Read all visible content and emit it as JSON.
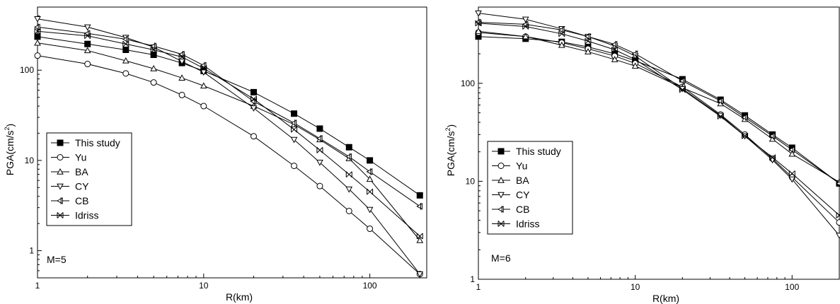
{
  "chart_data": [
    {
      "type": "line",
      "xscale": "log",
      "yscale": "log",
      "xlim": [
        1,
        220
      ],
      "ylim": [
        0.5,
        500
      ],
      "xticks": [
        1,
        10,
        100
      ],
      "xtick_labels": [
        "1",
        "10",
        "100"
      ],
      "yticks": [
        1,
        10,
        100
      ],
      "ytick_labels": [
        "1",
        "10",
        "100"
      ],
      "xlabel": "R(km)",
      "ylabel": "PGA(cm/s",
      "ylabel_sup": "2",
      "ylabel_end": ")",
      "annotation": "M=5",
      "legend_position": "lower-left",
      "x": [
        1,
        2,
        3.4,
        5,
        7.4,
        10,
        20,
        35,
        50,
        75,
        100,
        200
      ],
      "series": [
        {
          "name": "This study",
          "marker": "filled-square",
          "values": [
            235,
            195,
            168,
            148,
            120,
            98,
            57,
            33,
            22.5,
            14,
            10,
            4.1
          ]
        },
        {
          "name": "Yu",
          "marker": "circle",
          "values": [
            145,
            117,
            92,
            73,
            53,
            40,
            18.5,
            8.7,
            5.2,
            2.75,
            1.75,
            0.55
          ]
        },
        {
          "name": "BA",
          "marker": "triangle-up",
          "values": [
            200,
            165,
            127,
            104,
            82,
            67,
            40,
            25,
            17,
            10.5,
            6.2,
            1.3
          ]
        },
        {
          "name": "CY",
          "marker": "triangle-down",
          "values": [
            370,
            300,
            230,
            180,
            125,
            95,
            38,
            17,
            9.5,
            4.8,
            2.85,
            0.55
          ]
        },
        {
          "name": "CB",
          "marker": "triangle-left-cross",
          "values": [
            300,
            255,
            220,
            185,
            150,
            113,
            45,
            26,
            17.5,
            11,
            7.5,
            3.1
          ]
        },
        {
          "name": "Idriss",
          "marker": "x-cross",
          "values": [
            270,
            240,
            195,
            168,
            140,
            105,
            48,
            22,
            13,
            7,
            4.5,
            1.45
          ]
        }
      ]
    },
    {
      "type": "line",
      "xscale": "log",
      "yscale": "log",
      "xlim": [
        1,
        200
      ],
      "ylim": [
        1,
        600
      ],
      "xticks": [
        1,
        10,
        100
      ],
      "xtick_labels": [
        "1",
        "10",
        "100"
      ],
      "yticks": [
        1,
        10,
        100
      ],
      "ytick_labels": [
        "1",
        "10",
        "100"
      ],
      "xlabel": "R(km)",
      "ylabel": "PGA(cm/s",
      "ylabel_sup": "2",
      "ylabel_end": ")",
      "annotation": "M=6",
      "legend_position": "lower-left",
      "x": [
        1,
        2,
        3.4,
        5,
        7.4,
        10,
        20,
        35,
        50,
        75,
        100,
        200
      ],
      "series": [
        {
          "name": "This study",
          "marker": "filled-square",
          "values": [
            300,
            285,
            265,
            235,
            200,
            170,
            110,
            68,
            47,
            30,
            22,
            9.5
          ]
        },
        {
          "name": "Yu",
          "marker": "circle",
          "values": [
            330,
            300,
            260,
            225,
            190,
            160,
            92,
            48,
            30,
            17,
            11,
            3.8
          ]
        },
        {
          "name": "BA",
          "marker": "triangle-up",
          "values": [
            340,
            300,
            245,
            210,
            175,
            150,
            90,
            62,
            43,
            27,
            19,
            9.8
          ]
        },
        {
          "name": "CY",
          "marker": "triangle-down",
          "values": [
            520,
            450,
            360,
            300,
            240,
            190,
            88,
            47,
            29,
            16.5,
            10.5,
            2.8
          ]
        },
        {
          "name": "CB",
          "marker": "triangle-left-cross",
          "values": [
            420,
            400,
            350,
            300,
            250,
            200,
            106,
            66,
            45,
            29,
            21,
            9.5
          ]
        },
        {
          "name": "Idriss",
          "marker": "x-cross",
          "values": [
            410,
            380,
            320,
            270,
            220,
            175,
            86,
            46,
            29,
            17.5,
            12,
            4.5
          ]
        }
      ]
    }
  ]
}
